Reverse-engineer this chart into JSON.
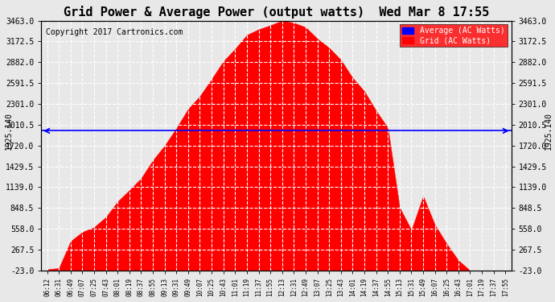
{
  "title": "Grid Power & Average Power (output watts)  Wed Mar 8 17:55",
  "copyright": "Copyright 2017 Cartronics.com",
  "average_value": 1925.14,
  "average_label": "1925.140",
  "yticks": [
    -23.0,
    267.5,
    558.0,
    848.5,
    1139.0,
    1429.5,
    1720.0,
    2010.5,
    2301.0,
    2591.5,
    2882.0,
    3172.5,
    3463.0
  ],
  "ymin": -23.0,
  "ymax": 3463.0,
  "fill_color": "#FF0000",
  "fill_edge_color": "#FF0000",
  "avg_line_color": "#0000FF",
  "background_color": "#E8E8E8",
  "plot_bg_color": "#E8E8E8",
  "grid_color": "#FFFFFF",
  "title_color": "#000000",
  "legend_avg_bg": "#0000FF",
  "legend_grid_bg": "#FF0000",
  "xtick_labels": [
    "06:12",
    "06:31",
    "06:49",
    "07:07",
    "07:25",
    "07:43",
    "08:01",
    "08:19",
    "08:37",
    "08:55",
    "09:13",
    "09:31",
    "09:49",
    "10:07",
    "10:25",
    "10:43",
    "11:01",
    "11:19",
    "11:37",
    "11:55",
    "12:13",
    "12:31",
    "12:49",
    "13:07",
    "13:25",
    "13:43",
    "14:01",
    "14:19",
    "14:37",
    "14:55",
    "15:13",
    "15:31",
    "15:49",
    "16:07",
    "16:25",
    "16:43",
    "17:01",
    "17:19",
    "17:37",
    "17:55"
  ]
}
